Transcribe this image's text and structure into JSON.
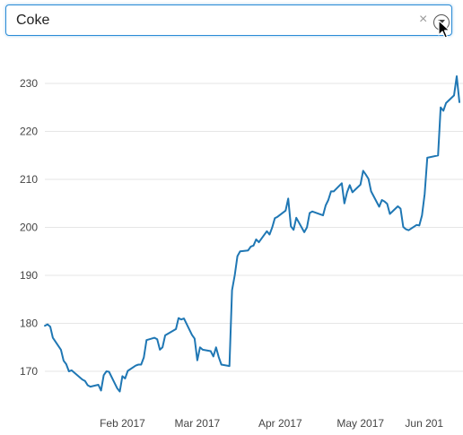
{
  "dropdown": {
    "value": "Coke",
    "clear_symbol": "×",
    "icons": [
      "clear-icon",
      "chevron-down-icon"
    ]
  },
  "colors": {
    "line": "#1f77b4",
    "grid": "#e6e6e6",
    "dropdown_border": "#2b8cd6"
  },
  "chart_data": {
    "type": "line",
    "title": "",
    "xlabel": "",
    "ylabel": "",
    "x_ticks": [
      "Feb 2017",
      "Mar 2017",
      "Apr 2017",
      "May 2017",
      "Jun 201"
    ],
    "y_ticks": [
      170,
      180,
      190,
      200,
      210,
      220,
      230
    ],
    "ylim": [
      165,
      232
    ],
    "grid": true,
    "legend": "none",
    "series": [
      {
        "x": [
          "2017-01-03",
          "2017-01-04",
          "2017-01-05",
          "2017-01-06",
          "2017-01-09",
          "2017-01-10",
          "2017-01-11",
          "2017-01-12",
          "2017-01-13",
          "2017-01-17",
          "2017-01-18",
          "2017-01-19",
          "2017-01-20",
          "2017-01-23",
          "2017-01-24",
          "2017-01-25",
          "2017-01-26",
          "2017-01-27",
          "2017-01-30",
          "2017-01-31",
          "2017-02-01",
          "2017-02-02",
          "2017-02-03",
          "2017-02-06",
          "2017-02-07",
          "2017-02-08",
          "2017-02-09",
          "2017-02-10",
          "2017-02-13",
          "2017-02-14",
          "2017-02-15",
          "2017-02-16",
          "2017-02-17",
          "2017-02-21",
          "2017-02-22",
          "2017-02-23",
          "2017-02-24",
          "2017-02-27",
          "2017-02-28",
          "2017-03-01",
          "2017-03-02",
          "2017-03-03",
          "2017-03-06",
          "2017-03-07",
          "2017-03-08",
          "2017-03-09",
          "2017-03-10",
          "2017-03-13",
          "2017-03-14",
          "2017-03-15",
          "2017-03-16",
          "2017-03-17",
          "2017-03-20",
          "2017-03-21",
          "2017-03-22",
          "2017-03-23",
          "2017-03-24",
          "2017-03-27",
          "2017-03-28",
          "2017-03-29",
          "2017-03-30",
          "2017-03-31",
          "2017-04-03",
          "2017-04-04",
          "2017-04-05",
          "2017-04-06",
          "2017-04-07",
          "2017-04-10",
          "2017-04-11",
          "2017-04-12",
          "2017-04-13",
          "2017-04-17",
          "2017-04-18",
          "2017-04-19",
          "2017-04-20",
          "2017-04-21",
          "2017-04-24",
          "2017-04-25",
          "2017-04-26",
          "2017-04-27",
          "2017-04-28",
          "2017-05-01",
          "2017-05-02",
          "2017-05-03",
          "2017-05-04",
          "2017-05-05",
          "2017-05-08",
          "2017-05-09",
          "2017-05-10",
          "2017-05-11",
          "2017-05-12",
          "2017-05-15",
          "2017-05-16",
          "2017-05-17",
          "2017-05-18",
          "2017-05-19",
          "2017-05-22",
          "2017-05-23",
          "2017-05-24",
          "2017-05-25",
          "2017-05-26",
          "2017-05-30",
          "2017-05-31",
          "2017-06-01",
          "2017-06-02",
          "2017-06-05",
          "2017-06-06",
          "2017-06-07"
        ],
        "values": [
          179.5,
          179.8,
          179.3,
          177.0,
          174.5,
          172.2,
          171.5,
          170.0,
          170.2,
          168.3,
          168.0,
          167.1,
          166.8,
          167.2,
          166.0,
          169.2,
          170.0,
          169.9,
          166.5,
          165.8,
          169.0,
          168.5,
          170.1,
          171.2,
          171.4,
          171.4,
          172.9,
          176.5,
          177.0,
          176.7,
          174.5,
          175.0,
          177.5,
          178.8,
          181.1,
          180.8,
          181.0,
          177.6,
          176.8,
          172.3,
          175.0,
          174.5,
          174.2,
          173.1,
          175.0,
          173.0,
          171.4,
          171.1,
          186.9,
          190.0,
          194.0,
          195.0,
          195.2,
          196.0,
          196.2,
          197.5,
          196.9,
          199.2,
          198.5,
          200.0,
          201.9,
          202.2,
          203.5,
          206.0,
          200.2,
          199.5,
          202.0,
          199.0,
          200.0,
          203.0,
          203.3,
          202.5,
          204.6,
          205.7,
          207.5,
          207.5,
          209.2,
          205.0,
          207.3,
          208.8,
          207.3,
          208.9,
          211.8,
          211.0,
          210.1,
          207.5,
          204.3,
          205.7,
          205.4,
          204.9,
          202.8,
          204.4,
          203.9,
          200.1,
          199.6,
          199.4,
          200.5,
          200.4,
          202.5,
          207.0,
          214.5,
          215.0,
          225.0,
          224.3,
          225.9,
          227.5,
          231.5,
          226.1
        ]
      }
    ]
  }
}
